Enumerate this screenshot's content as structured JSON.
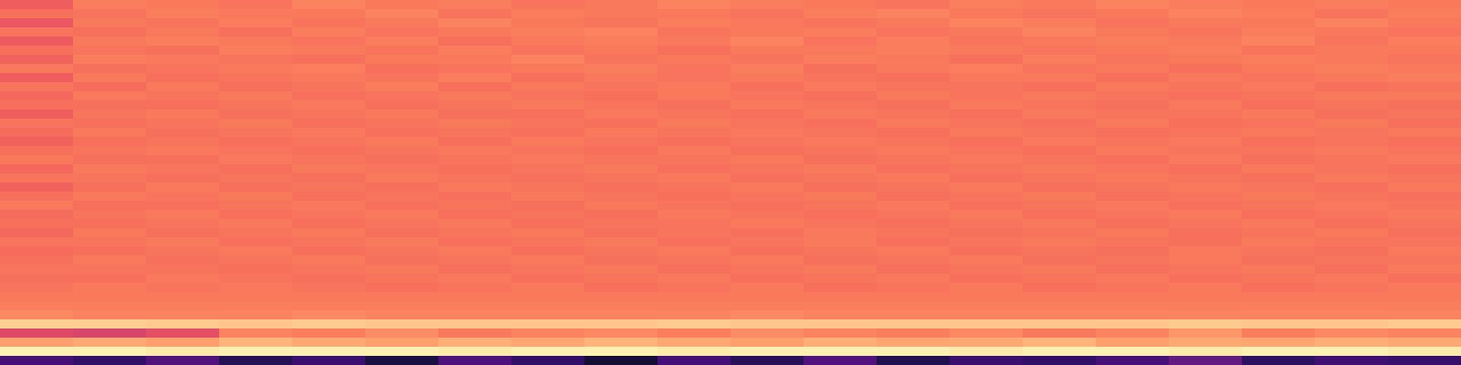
{
  "chart_data": {
    "type": "heatmap",
    "color": "magma",
    "tick_labels": false,
    "color_range": [
      0,
      1
    ],
    "cells": [
      [
        0.66,
        0.73,
        0.72,
        0.71,
        0.74,
        0.72,
        0.73,
        0.71,
        0.72,
        0.74,
        0.73,
        0.72,
        0.71,
        0.73,
        0.72,
        0.74,
        0.73,
        0.72,
        0.73,
        0.72
      ],
      [
        0.7,
        0.71,
        0.73,
        0.72,
        0.72,
        0.74,
        0.71,
        0.73,
        0.72,
        0.72,
        0.71,
        0.73,
        0.74,
        0.72,
        0.71,
        0.72,
        0.74,
        0.73,
        0.71,
        0.73
      ],
      [
        0.64,
        0.72,
        0.71,
        0.73,
        0.71,
        0.72,
        0.74,
        0.72,
        0.71,
        0.73,
        0.72,
        0.71,
        0.72,
        0.74,
        0.73,
        0.71,
        0.72,
        0.72,
        0.74,
        0.72
      ],
      [
        0.71,
        0.7,
        0.72,
        0.7,
        0.73,
        0.71,
        0.72,
        0.73,
        0.74,
        0.71,
        0.72,
        0.73,
        0.71,
        0.72,
        0.74,
        0.72,
        0.71,
        0.73,
        0.72,
        0.71
      ],
      [
        0.65,
        0.72,
        0.73,
        0.72,
        0.71,
        0.73,
        0.7,
        0.72,
        0.73,
        0.72,
        0.74,
        0.71,
        0.73,
        0.71,
        0.72,
        0.73,
        0.72,
        0.74,
        0.71,
        0.73
      ],
      [
        0.7,
        0.71,
        0.7,
        0.73,
        0.72,
        0.71,
        0.73,
        0.71,
        0.72,
        0.7,
        0.72,
        0.72,
        0.73,
        0.72,
        0.71,
        0.72,
        0.73,
        0.71,
        0.72,
        0.72
      ],
      [
        0.67,
        0.73,
        0.72,
        0.71,
        0.7,
        0.72,
        0.72,
        0.74,
        0.71,
        0.72,
        0.71,
        0.73,
        0.72,
        0.7,
        0.73,
        0.71,
        0.72,
        0.73,
        0.72,
        0.71
      ],
      [
        0.72,
        0.7,
        0.71,
        0.72,
        0.73,
        0.7,
        0.71,
        0.72,
        0.73,
        0.71,
        0.73,
        0.7,
        0.72,
        0.73,
        0.71,
        0.72,
        0.7,
        0.72,
        0.73,
        0.72
      ],
      [
        0.66,
        0.72,
        0.7,
        0.71,
        0.72,
        0.71,
        0.73,
        0.7,
        0.72,
        0.71,
        0.72,
        0.71,
        0.7,
        0.72,
        0.72,
        0.7,
        0.72,
        0.71,
        0.72,
        0.73
      ],
      [
        0.71,
        0.69,
        0.72,
        0.7,
        0.71,
        0.73,
        0.7,
        0.72,
        0.71,
        0.72,
        0.7,
        0.72,
        0.71,
        0.71,
        0.7,
        0.72,
        0.71,
        0.72,
        0.7,
        0.71
      ],
      [
        0.68,
        0.72,
        0.71,
        0.72,
        0.7,
        0.71,
        0.72,
        0.71,
        0.7,
        0.72,
        0.71,
        0.7,
        0.72,
        0.71,
        0.72,
        0.71,
        0.7,
        0.71,
        0.72,
        0.72
      ],
      [
        0.7,
        0.7,
        0.7,
        0.71,
        0.72,
        0.7,
        0.71,
        0.72,
        0.71,
        0.7,
        0.72,
        0.71,
        0.7,
        0.72,
        0.71,
        0.7,
        0.72,
        0.7,
        0.71,
        0.7
      ],
      [
        0.66,
        0.71,
        0.72,
        0.7,
        0.71,
        0.72,
        0.7,
        0.7,
        0.72,
        0.71,
        0.7,
        0.72,
        0.71,
        0.7,
        0.72,
        0.71,
        0.71,
        0.72,
        0.7,
        0.71
      ],
      [
        0.71,
        0.7,
        0.71,
        0.72,
        0.7,
        0.71,
        0.72,
        0.71,
        0.7,
        0.72,
        0.71,
        0.7,
        0.72,
        0.71,
        0.7,
        0.72,
        0.7,
        0.71,
        0.72,
        0.7
      ],
      [
        0.69,
        0.72,
        0.7,
        0.71,
        0.72,
        0.7,
        0.71,
        0.7,
        0.72,
        0.71,
        0.72,
        0.71,
        0.7,
        0.72,
        0.71,
        0.7,
        0.71,
        0.72,
        0.71,
        0.72
      ],
      [
        0.67,
        0.7,
        0.71,
        0.7,
        0.71,
        0.72,
        0.7,
        0.72,
        0.71,
        0.7,
        0.71,
        0.72,
        0.71,
        0.7,
        0.72,
        0.71,
        0.72,
        0.7,
        0.71,
        0.7
      ],
      [
        0.7,
        0.71,
        0.72,
        0.71,
        0.7,
        0.71,
        0.72,
        0.71,
        0.7,
        0.72,
        0.7,
        0.71,
        0.72,
        0.71,
        0.7,
        0.72,
        0.71,
        0.71,
        0.72,
        0.71
      ],
      [
        0.72,
        0.7,
        0.7,
        0.72,
        0.71,
        0.7,
        0.71,
        0.72,
        0.71,
        0.71,
        0.72,
        0.7,
        0.71,
        0.72,
        0.71,
        0.7,
        0.72,
        0.7,
        0.71,
        0.72
      ],
      [
        0.68,
        0.72,
        0.71,
        0.7,
        0.72,
        0.71,
        0.7,
        0.71,
        0.72,
        0.7,
        0.71,
        0.72,
        0.7,
        0.71,
        0.72,
        0.71,
        0.7,
        0.72,
        0.71,
        0.7
      ],
      [
        0.71,
        0.71,
        0.7,
        0.71,
        0.7,
        0.72,
        0.71,
        0.7,
        0.71,
        0.72,
        0.7,
        0.71,
        0.72,
        0.7,
        0.71,
        0.72,
        0.71,
        0.7,
        0.72,
        0.71
      ],
      [
        0.67,
        0.7,
        0.72,
        0.7,
        0.71,
        0.7,
        0.72,
        0.71,
        0.7,
        0.71,
        0.72,
        0.7,
        0.71,
        0.72,
        0.7,
        0.71,
        0.72,
        0.71,
        0.7,
        0.72
      ],
      [
        0.7,
        0.72,
        0.71,
        0.72,
        0.7,
        0.71,
        0.7,
        0.72,
        0.71,
        0.7,
        0.71,
        0.72,
        0.7,
        0.71,
        0.72,
        0.7,
        0.71,
        0.72,
        0.71,
        0.7
      ],
      [
        0.72,
        0.7,
        0.7,
        0.71,
        0.72,
        0.7,
        0.71,
        0.7,
        0.72,
        0.71,
        0.7,
        0.71,
        0.72,
        0.7,
        0.71,
        0.72,
        0.7,
        0.71,
        0.72,
        0.71
      ],
      [
        0.69,
        0.71,
        0.72,
        0.7,
        0.71,
        0.72,
        0.7,
        0.71,
        0.7,
        0.72,
        0.71,
        0.7,
        0.71,
        0.72,
        0.7,
        0.71,
        0.72,
        0.7,
        0.71,
        0.72
      ],
      [
        0.7,
        0.7,
        0.71,
        0.72,
        0.7,
        0.71,
        0.72,
        0.7,
        0.71,
        0.71,
        0.72,
        0.71,
        0.7,
        0.71,
        0.72,
        0.7,
        0.71,
        0.72,
        0.7,
        0.71
      ],
      [
        0.68,
        0.72,
        0.7,
        0.71,
        0.72,
        0.7,
        0.71,
        0.72,
        0.7,
        0.71,
        0.7,
        0.72,
        0.71,
        0.7,
        0.71,
        0.72,
        0.7,
        0.71,
        0.72,
        0.7
      ],
      [
        0.71,
        0.71,
        0.72,
        0.7,
        0.71,
        0.72,
        0.7,
        0.71,
        0.72,
        0.7,
        0.71,
        0.72,
        0.7,
        0.71,
        0.72,
        0.71,
        0.7,
        0.72,
        0.71,
        0.71
      ],
      [
        0.69,
        0.7,
        0.71,
        0.72,
        0.7,
        0.71,
        0.72,
        0.7,
        0.71,
        0.72,
        0.7,
        0.71,
        0.72,
        0.7,
        0.71,
        0.7,
        0.72,
        0.71,
        0.7,
        0.72
      ],
      [
        0.7,
        0.72,
        0.7,
        0.71,
        0.72,
        0.7,
        0.71,
        0.72,
        0.7,
        0.71,
        0.72,
        0.7,
        0.71,
        0.72,
        0.7,
        0.71,
        0.72,
        0.7,
        0.71,
        0.71
      ],
      [
        0.71,
        0.71,
        0.71,
        0.7,
        0.71,
        0.72,
        0.7,
        0.71,
        0.72,
        0.7,
        0.71,
        0.72,
        0.7,
        0.71,
        0.72,
        0.7,
        0.71,
        0.72,
        0.7,
        0.72
      ],
      [
        0.7,
        0.7,
        0.72,
        0.71,
        0.7,
        0.71,
        0.72,
        0.7,
        0.71,
        0.72,
        0.7,
        0.71,
        0.72,
        0.7,
        0.71,
        0.72,
        0.7,
        0.71,
        0.72,
        0.7
      ],
      [
        0.71,
        0.72,
        0.71,
        0.72,
        0.71,
        0.7,
        0.71,
        0.72,
        0.7,
        0.71,
        0.72,
        0.7,
        0.71,
        0.72,
        0.7,
        0.71,
        0.72,
        0.7,
        0.71,
        0.72
      ],
      [
        0.72,
        0.72,
        0.72,
        0.72,
        0.72,
        0.72,
        0.72,
        0.72,
        0.72,
        0.72,
        0.72,
        0.72,
        0.72,
        0.72,
        0.72,
        0.72,
        0.72,
        0.72,
        0.72,
        0.72
      ],
      [
        0.73,
        0.73,
        0.73,
        0.73,
        0.73,
        0.73,
        0.73,
        0.73,
        0.73,
        0.73,
        0.73,
        0.73,
        0.73,
        0.73,
        0.73,
        0.73,
        0.73,
        0.73,
        0.73,
        0.73
      ],
      [
        0.75,
        0.74,
        0.74,
        0.74,
        0.75,
        0.74,
        0.74,
        0.74,
        0.74,
        0.74,
        0.75,
        0.74,
        0.74,
        0.74,
        0.74,
        0.74,
        0.74,
        0.74,
        0.74,
        0.74
      ],
      [
        0.9,
        0.9,
        0.89,
        0.88,
        0.89,
        0.88,
        0.88,
        0.88,
        0.88,
        0.89,
        0.88,
        0.88,
        0.88,
        0.88,
        0.88,
        0.88,
        0.89,
        0.88,
        0.88,
        0.89
      ],
      [
        0.6,
        0.58,
        0.62,
        0.74,
        0.73,
        0.76,
        0.72,
        0.74,
        0.75,
        0.73,
        0.76,
        0.74,
        0.73,
        0.75,
        0.72,
        0.74,
        0.78,
        0.73,
        0.75,
        0.74
      ],
      [
        0.8,
        0.82,
        0.8,
        0.84,
        0.82,
        0.8,
        0.83,
        0.81,
        0.84,
        0.82,
        0.8,
        0.83,
        0.81,
        0.82,
        0.84,
        0.8,
        0.82,
        0.81,
        0.83,
        0.82
      ],
      [
        0.97,
        0.97,
        0.96,
        0.97,
        0.97,
        0.97,
        0.96,
        0.97,
        0.97,
        0.96,
        0.97,
        0.97,
        0.97,
        0.96,
        0.97,
        0.97,
        0.96,
        0.97,
        0.97,
        0.96
      ],
      [
        0.22,
        0.18,
        0.25,
        0.15,
        0.2,
        0.12,
        0.24,
        0.18,
        0.1,
        0.22,
        0.16,
        0.25,
        0.14,
        0.2,
        0.18,
        0.23,
        0.3,
        0.17,
        0.21,
        0.19
      ]
    ]
  }
}
